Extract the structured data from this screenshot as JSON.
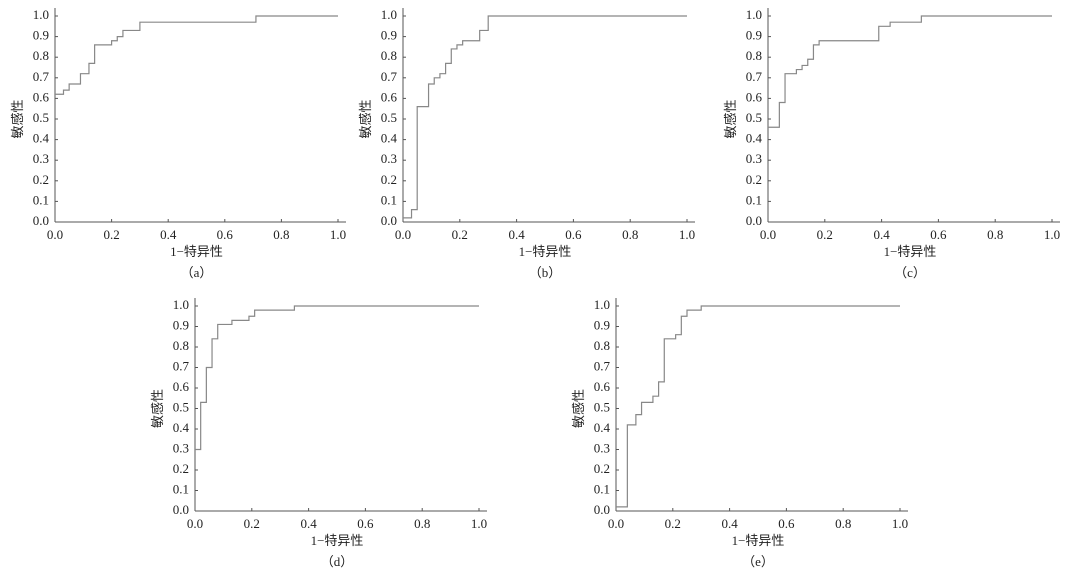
{
  "chart_data": [
    {
      "type": "line",
      "caption": "（a）",
      "xlabel": "1−特异性",
      "ylabel": "敏感性",
      "color": "#888888",
      "x": [
        0,
        0.03,
        0.03,
        0.05,
        0.05,
        0.09,
        0.09,
        0.12,
        0.12,
        0.14,
        0.14,
        0.2,
        0.2,
        0.22,
        0.22,
        0.24,
        0.24,
        0.3,
        0.3,
        0.71,
        0.71,
        1.0
      ],
      "values": [
        0.62,
        0.62,
        0.64,
        0.64,
        0.67,
        0.67,
        0.72,
        0.72,
        0.77,
        0.77,
        0.86,
        0.86,
        0.88,
        0.88,
        0.9,
        0.9,
        0.93,
        0.93,
        0.97,
        0.97,
        1.0,
        1.0
      ],
      "xlim": [
        0,
        1
      ],
      "ylim": [
        0,
        1
      ],
      "xticks": [
        {
          "value": 0,
          "label": "0.0"
        },
        0.2,
        0.4,
        0.6,
        0.8,
        {
          "value": 1,
          "label": "1.0"
        }
      ],
      "yticks": [
        {
          "value": 0,
          "label": "0.0"
        },
        0.1,
        0.2,
        0.3,
        0.4,
        0.5,
        0.6,
        0.7,
        0.8,
        0.9,
        {
          "value": 1,
          "label": "1.0"
        }
      ]
    },
    {
      "type": "line",
      "caption": "（b）",
      "xlabel": "1−特异性",
      "ylabel": "敏感性",
      "color": "#888888",
      "x": [
        0,
        0.03,
        0.03,
        0.05,
        0.05,
        0.09,
        0.09,
        0.11,
        0.11,
        0.13,
        0.13,
        0.15,
        0.15,
        0.17,
        0.17,
        0.19,
        0.19,
        0.21,
        0.21,
        0.27,
        0.27,
        0.3,
        0.3,
        1.0
      ],
      "values": [
        0.02,
        0.02,
        0.06,
        0.06,
        0.56,
        0.56,
        0.67,
        0.67,
        0.7,
        0.7,
        0.72,
        0.72,
        0.77,
        0.77,
        0.84,
        0.84,
        0.86,
        0.86,
        0.88,
        0.88,
        0.93,
        0.93,
        1.0,
        1.0
      ],
      "xlim": [
        0,
        1
      ],
      "ylim": [
        0,
        1
      ],
      "xticks": [
        {
          "value": 0,
          "label": "0.0"
        },
        0.2,
        0.4,
        0.6,
        0.8,
        {
          "value": 1,
          "label": "1.0"
        }
      ],
      "yticks": [
        {
          "value": 0,
          "label": "0.0"
        },
        0.1,
        0.2,
        0.3,
        0.4,
        0.5,
        0.6,
        0.7,
        0.8,
        0.9,
        {
          "value": 1,
          "label": "1.0"
        }
      ]
    },
    {
      "type": "line",
      "caption": "（c）",
      "xlabel": "1−特异性",
      "ylabel": "敏感性",
      "color": "#888888",
      "x": [
        0,
        0.04,
        0.04,
        0.06,
        0.06,
        0.1,
        0.1,
        0.12,
        0.12,
        0.14,
        0.14,
        0.16,
        0.16,
        0.18,
        0.18,
        0.39,
        0.39,
        0.43,
        0.43,
        0.54,
        0.54,
        1.0
      ],
      "values": [
        0.46,
        0.46,
        0.58,
        0.58,
        0.72,
        0.72,
        0.74,
        0.74,
        0.76,
        0.76,
        0.79,
        0.79,
        0.86,
        0.86,
        0.88,
        0.88,
        0.95,
        0.95,
        0.97,
        0.97,
        1.0,
        1.0
      ],
      "xlim": [
        0,
        1
      ],
      "ylim": [
        0,
        1
      ],
      "xticks": [
        {
          "value": 0,
          "label": "0.0"
        },
        0.2,
        0.4,
        0.6,
        0.8,
        {
          "value": 1,
          "label": "1.0"
        }
      ],
      "yticks": [
        {
          "value": 0,
          "label": "0.0"
        },
        0.1,
        0.2,
        0.3,
        0.4,
        0.5,
        0.6,
        0.7,
        0.8,
        0.9,
        {
          "value": 1,
          "label": "1.0"
        }
      ]
    },
    {
      "type": "line",
      "caption": "（d）",
      "xlabel": "1−特异性",
      "ylabel": "敏感性",
      "color": "#888888",
      "x": [
        0,
        0.02,
        0.02,
        0.04,
        0.04,
        0.06,
        0.06,
        0.08,
        0.08,
        0.13,
        0.13,
        0.19,
        0.19,
        0.21,
        0.21,
        0.35,
        0.35,
        1.0
      ],
      "values": [
        0.3,
        0.3,
        0.53,
        0.53,
        0.7,
        0.7,
        0.84,
        0.84,
        0.91,
        0.91,
        0.93,
        0.93,
        0.95,
        0.95,
        0.98,
        0.98,
        1.0,
        1.0
      ],
      "xlim": [
        0,
        1
      ],
      "ylim": [
        0,
        1
      ],
      "xticks": [
        {
          "value": 0,
          "label": "0.0"
        },
        0.2,
        0.4,
        0.6,
        0.8,
        {
          "value": 1,
          "label": "1.0"
        }
      ],
      "yticks": [
        {
          "value": 0,
          "label": "0.0"
        },
        0.1,
        0.2,
        0.3,
        0.4,
        0.5,
        0.6,
        0.7,
        0.8,
        0.9,
        {
          "value": 1,
          "label": "1.0"
        }
      ]
    },
    {
      "type": "line",
      "caption": "（e）",
      "xlabel": "1−特异性",
      "ylabel": "敏感性",
      "color": "#888888",
      "x": [
        0,
        0.04,
        0.04,
        0.07,
        0.07,
        0.09,
        0.09,
        0.13,
        0.13,
        0.15,
        0.15,
        0.17,
        0.17,
        0.21,
        0.21,
        0.23,
        0.23,
        0.25,
        0.25,
        0.3,
        0.3,
        1.0
      ],
      "values": [
        0.02,
        0.02,
        0.42,
        0.42,
        0.47,
        0.47,
        0.53,
        0.53,
        0.56,
        0.56,
        0.63,
        0.63,
        0.84,
        0.84,
        0.86,
        0.86,
        0.95,
        0.95,
        0.98,
        0.98,
        1.0,
        1.0
      ],
      "xlim": [
        0,
        1
      ],
      "ylim": [
        0,
        1
      ],
      "xticks": [
        {
          "value": 0,
          "label": "0.0"
        },
        0.2,
        0.4,
        0.6,
        0.8,
        {
          "value": 1,
          "label": "1.0"
        }
      ],
      "yticks": [
        {
          "value": 0,
          "label": "0.0"
        },
        0.1,
        0.2,
        0.3,
        0.4,
        0.5,
        0.6,
        0.7,
        0.8,
        0.9,
        {
          "value": 1,
          "label": "1.0"
        }
      ]
    }
  ]
}
